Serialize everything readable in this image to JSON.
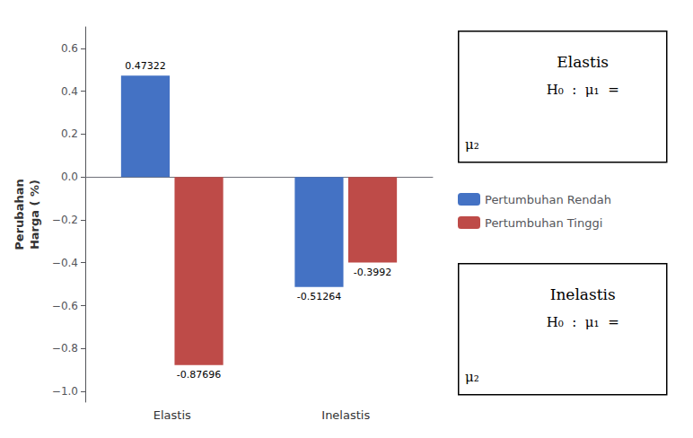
{
  "chart_data": {
    "type": "bar",
    "categories": [
      "Elastis",
      "Inelastis"
    ],
    "series": [
      {
        "name": "Pertumbuhan Rendah",
        "color": "#4472C4",
        "values": [
          0.47322,
          -0.51264
        ]
      },
      {
        "name": "Pertumbuhan Tinggi",
        "color": "#BE4B48",
        "values": [
          -0.87696,
          -0.3992
        ]
      }
    ],
    "ylabel": "Perubahan\nHarga ( %)",
    "ylim": [
      -1.05,
      0.7
    ],
    "yticks": [
      {
        "value": -1.0,
        "label": "−1.0"
      },
      {
        "value": -0.8,
        "label": "−0.8"
      },
      {
        "value": -0.6,
        "label": "−0.6"
      },
      {
        "value": -0.4,
        "label": "−0.4"
      },
      {
        "value": -0.2,
        "label": "−0.2"
      },
      {
        "value": 0,
        "label": "0.0"
      },
      {
        "value": 0.2,
        "label": "0.2"
      },
      {
        "value": 0.4,
        "label": "0.4"
      },
      {
        "value": 0.6,
        "label": "0.6"
      }
    ],
    "data_labels": true,
    "grid": false,
    "legend": "right",
    "annotations": [
      [
        "Elastis",
        "H₀  :  μ₁  =",
        "μ₂"
      ],
      [
        "Inelastis",
        "H₀  :  μ₁  =",
        "μ₂"
      ]
    ]
  }
}
